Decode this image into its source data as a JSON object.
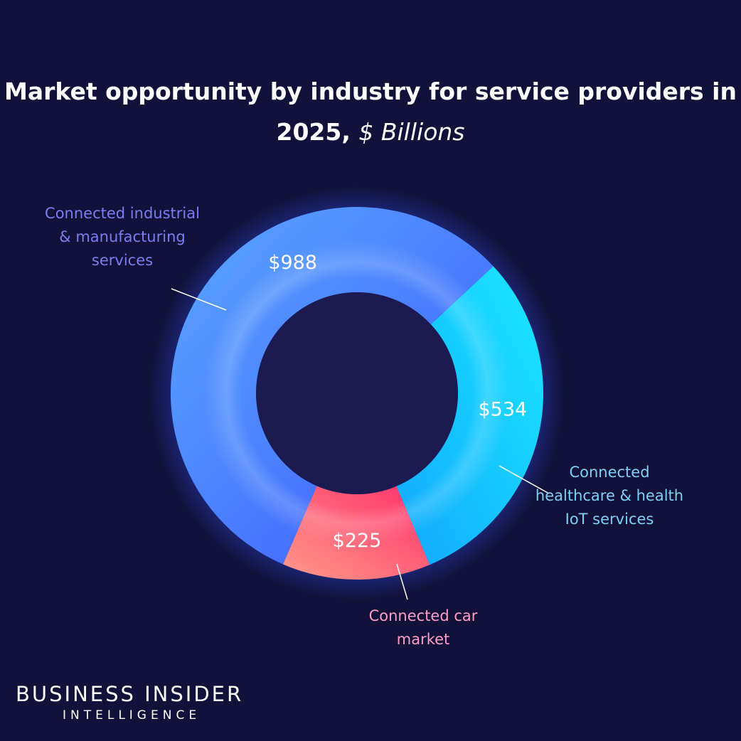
{
  "title": {
    "main": "Market opportunity by industry for service providers in 2025,",
    "unit": "$ Billions"
  },
  "chart_data": {
    "type": "pie",
    "variant": "donut",
    "categories": [
      "Connected industrial & manufacturing services",
      "Connected healthcare & health IoT services",
      "Connected car market"
    ],
    "values": [
      988,
      534,
      225
    ],
    "value_labels": [
      "$988",
      "$534",
      "$225"
    ],
    "colors": [
      "#4a6cff",
      "#1ad6ff",
      "#ff4f79"
    ],
    "label_colors": [
      "#7b7df0",
      "#7fcff5",
      "#ff9fc6"
    ],
    "legend": "none"
  },
  "brand": {
    "line1": "BUSINESS INSIDER",
    "line2": "INTELLIGENCE"
  }
}
